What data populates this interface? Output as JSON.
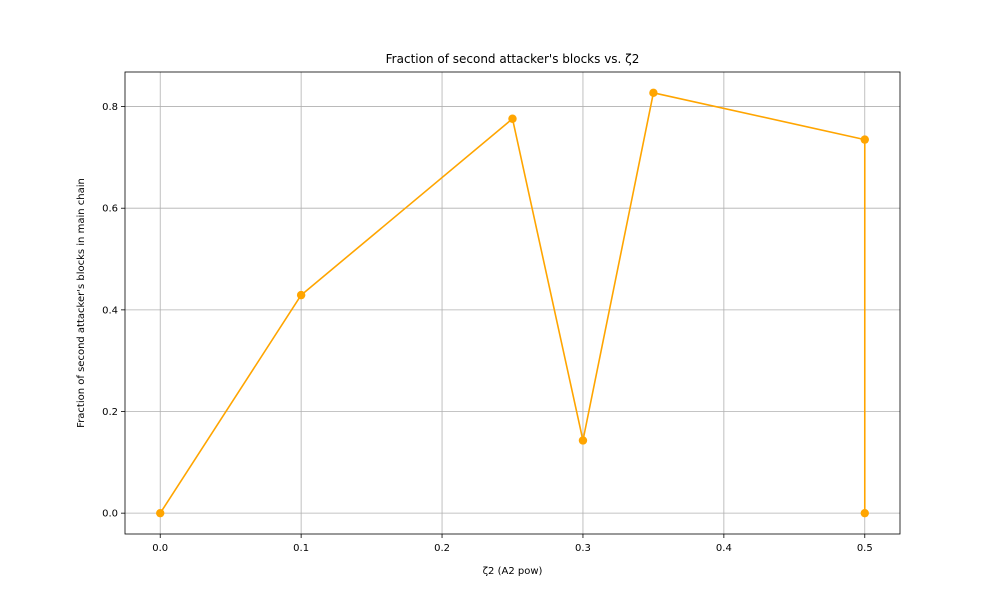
{
  "chart_data": {
    "type": "line",
    "title": "Fraction of second attacker's blocks vs. ζ2",
    "xlabel": "ζ2 (A2 pow)",
    "ylabel": "Fraction of second attacker's blocks in main chain",
    "x": [
      0.0,
      0.1,
      0.25,
      0.3,
      0.35,
      0.5,
      0.5
    ],
    "series": [
      {
        "values": [
          0.0,
          0.429,
          0.776,
          0.143,
          0.827,
          0.735,
          0.0
        ]
      }
    ],
    "xlim": [
      -0.025,
      0.525
    ],
    "ylim": [
      -0.041,
      0.868
    ],
    "xticks": [
      0.0,
      0.1,
      0.2,
      0.3,
      0.4,
      0.5
    ],
    "xtick_labels": [
      "0.0",
      "0.1",
      "0.2",
      "0.3",
      "0.4",
      "0.5"
    ],
    "yticks": [
      0.0,
      0.2,
      0.4,
      0.6,
      0.8
    ],
    "ytick_labels": [
      "0.0",
      "0.2",
      "0.4",
      "0.6",
      "0.8"
    ],
    "grid": true,
    "marker": "circle",
    "color": "#FFA500"
  }
}
